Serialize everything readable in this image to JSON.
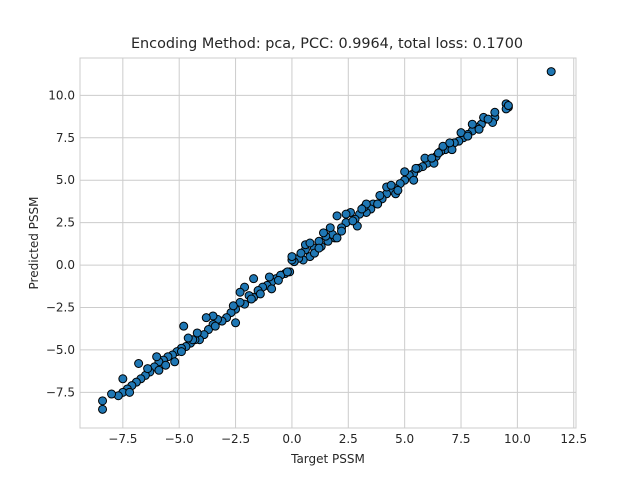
{
  "chart_data": {
    "type": "scatter",
    "title": "Encoding Method: pca, PCC: 0.9964, total loss: 0.1700",
    "xlabel": "Target PSSM",
    "ylabel": "Predicted PSSM",
    "xlim": [
      -9.4,
      12.6
    ],
    "ylim": [
      -9.6,
      12.2
    ],
    "xticks": [
      -7.5,
      -5.0,
      -2.5,
      0.0,
      2.5,
      5.0,
      7.5,
      10.0,
      12.5
    ],
    "xtick_labels": [
      "−7.5",
      "−5.0",
      "−2.5",
      "0.0",
      "2.5",
      "5.0",
      "7.5",
      "10.0",
      "12.5"
    ],
    "yticks": [
      -7.5,
      -5.0,
      -2.5,
      0.0,
      2.5,
      5.0,
      7.5,
      10.0
    ],
    "ytick_labels": [
      "−7.5",
      "−5.0",
      "−2.5",
      "0.0",
      "2.5",
      "5.0",
      "7.5",
      "10.0"
    ],
    "grid": true,
    "marker_color": "#1f77b4",
    "marker_edge_color": "#000000",
    "points": [
      [
        11.5,
        11.4
      ],
      [
        9.5,
        9.5
      ],
      [
        9.6,
        9.3
      ],
      [
        9.5,
        9.2
      ],
      [
        9.0,
        8.7
      ],
      [
        8.9,
        8.4
      ],
      [
        8.6,
        8.6
      ],
      [
        8.4,
        8.3
      ],
      [
        8.2,
        8.1
      ],
      [
        8.0,
        7.9
      ],
      [
        7.8,
        7.7
      ],
      [
        7.6,
        7.5
      ],
      [
        7.4,
        7.3
      ],
      [
        7.2,
        7.2
      ],
      [
        7.0,
        7.0
      ],
      [
        6.8,
        6.8
      ],
      [
        6.6,
        6.7
      ],
      [
        6.4,
        6.4
      ],
      [
        6.2,
        6.2
      ],
      [
        6.0,
        6.0
      ],
      [
        5.8,
        5.8
      ],
      [
        5.6,
        5.7
      ],
      [
        5.4,
        5.4
      ],
      [
        5.2,
        5.3
      ],
      [
        5.0,
        5.0
      ],
      [
        4.8,
        4.8
      ],
      [
        4.6,
        4.5
      ],
      [
        4.4,
        4.4
      ],
      [
        4.2,
        4.2
      ],
      [
        4.0,
        3.9
      ],
      [
        3.8,
        3.6
      ],
      [
        3.6,
        3.6
      ],
      [
        3.5,
        3.3
      ],
      [
        3.3,
        3.1
      ],
      [
        3.2,
        3.4
      ],
      [
        3.0,
        3.0
      ],
      [
        2.8,
        2.7
      ],
      [
        2.6,
        3.1
      ],
      [
        2.4,
        2.5
      ],
      [
        2.2,
        2.2
      ],
      [
        2.0,
        2.9
      ],
      [
        1.9,
        1.6
      ],
      [
        1.8,
        1.8
      ],
      [
        1.6,
        1.4
      ],
      [
        1.5,
        1.7
      ],
      [
        1.3,
        1.1
      ],
      [
        1.2,
        1.4
      ],
      [
        1.0,
        1.0
      ],
      [
        0.8,
        0.5
      ],
      [
        0.6,
        0.9
      ],
      [
        0.5,
        0.3
      ],
      [
        0.3,
        0.4
      ],
      [
        0.1,
        0.2
      ],
      [
        0.0,
        0.3
      ],
      [
        -0.1,
        -0.4
      ],
      [
        -0.3,
        -0.5
      ],
      [
        -0.5,
        -0.6
      ],
      [
        -0.7,
        -0.8
      ],
      [
        -0.9,
        -1.0
      ],
      [
        -1.1,
        -1.2
      ],
      [
        -1.3,
        -1.3
      ],
      [
        -1.5,
        -1.5
      ],
      [
        -1.7,
        -1.9
      ],
      [
        -1.9,
        -1.8
      ],
      [
        -2.1,
        -2.3
      ],
      [
        -2.3,
        -2.2
      ],
      [
        -2.5,
        -2.6
      ],
      [
        -2.7,
        -2.8
      ],
      [
        -2.9,
        -3.1
      ],
      [
        -3.1,
        -3.3
      ],
      [
        -3.3,
        -3.2
      ],
      [
        -3.5,
        -3.5
      ],
      [
        -3.7,
        -3.8
      ],
      [
        -3.9,
        -4.1
      ],
      [
        -4.1,
        -4.4
      ],
      [
        -4.3,
        -4.4
      ],
      [
        -4.5,
        -4.6
      ],
      [
        -4.7,
        -4.8
      ],
      [
        -4.9,
        -4.9
      ],
      [
        -5.1,
        -5.1
      ],
      [
        -5.3,
        -5.3
      ],
      [
        -5.5,
        -5.4
      ],
      [
        -5.7,
        -5.6
      ],
      [
        -5.9,
        -5.7
      ],
      [
        -6.1,
        -6.0
      ],
      [
        -6.3,
        -6.3
      ],
      [
        -6.5,
        -6.5
      ],
      [
        -6.7,
        -6.7
      ],
      [
        -6.9,
        -6.9
      ],
      [
        -7.1,
        -7.1
      ],
      [
        -7.3,
        -7.3
      ],
      [
        -7.5,
        -7.5
      ],
      [
        -7.7,
        -7.7
      ],
      [
        -8.4,
        -8.0
      ],
      [
        -8.4,
        -8.5
      ],
      [
        -7.5,
        -6.7
      ],
      [
        -6.8,
        -5.8
      ],
      [
        -6.0,
        -5.4
      ],
      [
        -5.2,
        -5.7
      ],
      [
        -4.8,
        -3.6
      ],
      [
        -4.4,
        -4.4
      ],
      [
        -3.5,
        -3.0
      ],
      [
        -2.5,
        -3.4
      ],
      [
        -2.1,
        -1.3
      ],
      [
        -1.7,
        -0.8
      ],
      [
        -0.9,
        -1.4
      ],
      [
        -0.5,
        -0.6
      ],
      [
        0.0,
        0.5
      ],
      [
        0.6,
        1.2
      ],
      [
        1.0,
        0.7
      ],
      [
        1.4,
        1.9
      ],
      [
        2.0,
        1.6
      ],
      [
        2.4,
        3.0
      ],
      [
        2.9,
        2.3
      ],
      [
        3.3,
        3.6
      ],
      [
        3.8,
        3.6
      ],
      [
        4.2,
        4.6
      ],
      [
        4.6,
        4.2
      ],
      [
        5.0,
        5.5
      ],
      [
        5.4,
        5.0
      ],
      [
        5.9,
        6.3
      ],
      [
        6.3,
        6.0
      ],
      [
        6.7,
        7.0
      ],
      [
        7.1,
        6.8
      ],
      [
        7.5,
        7.8
      ],
      [
        8.0,
        8.3
      ],
      [
        8.5,
        8.7
      ],
      [
        9.0,
        9.0
      ],
      [
        9.6,
        9.4
      ],
      [
        -8.0,
        -7.6
      ],
      [
        -7.2,
        -7.5
      ],
      [
        -6.4,
        -6.1
      ],
      [
        -5.6,
        -5.9
      ],
      [
        -4.9,
        -5.1
      ],
      [
        -4.2,
        -4.0
      ],
      [
        -3.4,
        -3.6
      ],
      [
        -2.6,
        -2.4
      ],
      [
        -1.8,
        -2.0
      ],
      [
        -1.0,
        -0.7
      ],
      [
        -0.2,
        -0.4
      ],
      [
        0.4,
        0.7
      ],
      [
        1.2,
        1.0
      ],
      [
        2.2,
        2.0
      ],
      [
        3.1,
        3.3
      ],
      [
        3.9,
        4.1
      ],
      [
        4.7,
        4.4
      ],
      [
        5.5,
        5.7
      ],
      [
        6.2,
        6.3
      ],
      [
        7.0,
        7.2
      ],
      [
        7.8,
        7.6
      ],
      [
        8.7,
        8.6
      ],
      [
        -5.9,
        -6.2
      ],
      [
        -3.8,
        -3.1
      ],
      [
        -1.4,
        -1.7
      ],
      [
        0.8,
        1.3
      ],
      [
        2.7,
        2.6
      ],
      [
        4.4,
        4.7
      ],
      [
        6.5,
        6.6
      ],
      [
        8.3,
        8.0
      ],
      [
        -2.3,
        -1.6
      ],
      [
        1.7,
        2.2
      ],
      [
        -0.6,
        -0.9
      ],
      [
        -4.6,
        -4.3
      ]
    ]
  }
}
